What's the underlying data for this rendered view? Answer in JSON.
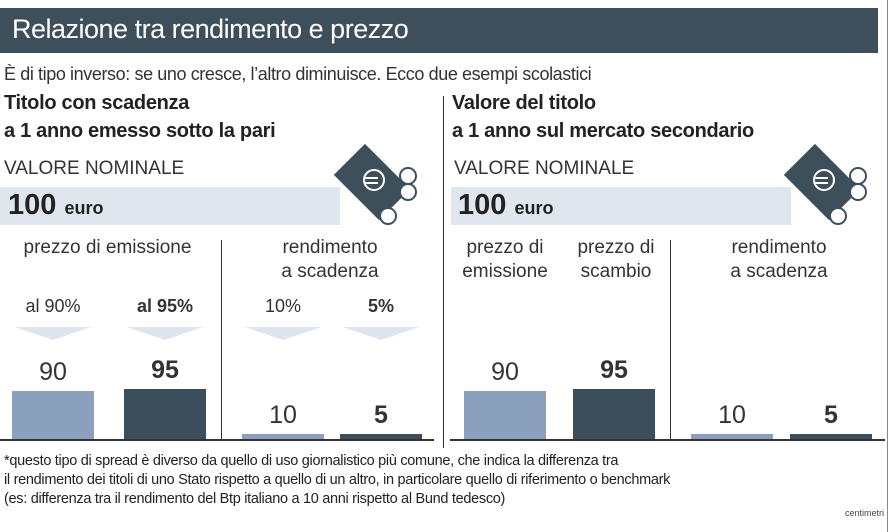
{
  "title": "Relazione tra rendimento e prezzo",
  "subtitle": "È di tipo inverso: se uno cresce, l’altro diminuisce. Ecco due esempi scolastici",
  "colors": {
    "header": "#3e4f5c",
    "band": "#dfe6ee",
    "bar_light": "#8aa0bd",
    "bar_dark": "#3c4e5b"
  },
  "left": {
    "heading1": "Titolo con scadenza",
    "heading2": "a 1 anno emesso sotto la pari",
    "nominal_label": "VALORE NOMINALE",
    "nominal_value": "100",
    "nominal_unit": "euro",
    "icon": "euro-banknote-coins-icon",
    "price_label": "prezzo di emissione",
    "yield_label1": "rendimento",
    "yield_label2": "a scadenza",
    "bars": [
      {
        "pct": "al 90%",
        "value": "90",
        "num": 90,
        "style": "light"
      },
      {
        "pct": "al 95%",
        "value": "95",
        "num": 95,
        "style": "dark"
      },
      {
        "pct": "10%",
        "value": "10",
        "num": 10,
        "style": "light"
      },
      {
        "pct": "5%",
        "value": "5",
        "num": 5,
        "style": "dark"
      }
    ]
  },
  "right": {
    "heading1": "Valore del titolo",
    "heading2": "a 1 anno sul mercato secondario",
    "nominal_label": "VALORE NOMINALE",
    "nominal_value": "100",
    "nominal_unit": "euro",
    "icon": "euro-banknote-coins-icon",
    "price1_label1": "prezzo di",
    "price1_label2": "emissione",
    "price2_label1": "prezzo di",
    "price2_label2": "scambio",
    "yield_label1": "rendimento",
    "yield_label2": "a scadenza",
    "bars": [
      {
        "value": "90",
        "num": 90,
        "style": "light"
      },
      {
        "value": "95",
        "num": 95,
        "style": "dark"
      },
      {
        "value": "10",
        "num": 10,
        "style": "light"
      },
      {
        "value": "5",
        "num": 5,
        "style": "dark"
      }
    ]
  },
  "footnote": [
    "*questo tipo di spread è diverso da quello di uso giornalistico più comune, che indica la differenza tra",
    "il rendimento dei titoli di uno Stato rispetto a quello di un altro, in particolare quello di riferimento o benchmark",
    "(es: differenza tra il rendimento del Btp italiano a 10 anni rispetto al Bund tedesco)"
  ],
  "credit": "centimetri"
}
